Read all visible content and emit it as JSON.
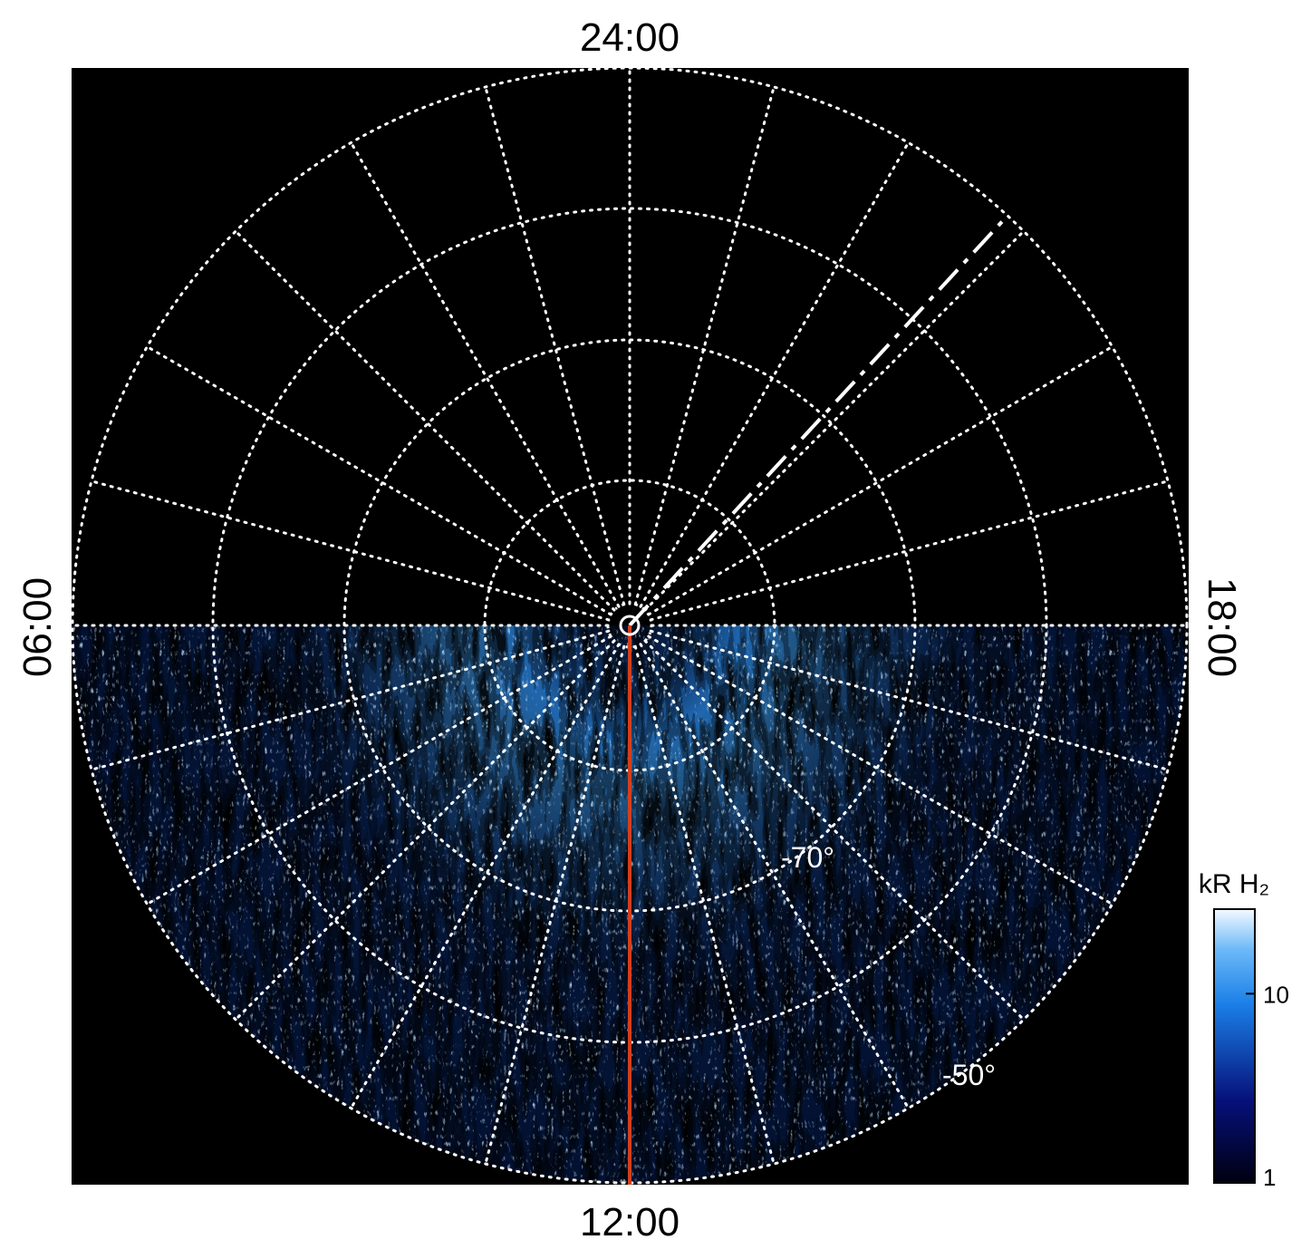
{
  "figure": {
    "time_labels": {
      "top": "24:00",
      "left": "06:00",
      "bottom": "12:00",
      "right": "18:00"
    },
    "latitude_labels": [
      "-70°",
      "-50°"
    ],
    "colorbar": {
      "label": "kR H₂",
      "range": [
        1,
        28
      ],
      "ticks": [
        1,
        10
      ],
      "log": true
    }
  }
}
